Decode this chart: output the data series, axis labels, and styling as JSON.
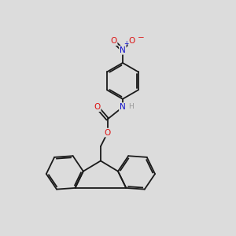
{
  "bg_color": "#dcdcdc",
  "bond_color": "#1a1a1a",
  "bond_width": 1.3,
  "atom_colors": {
    "O": "#dd1111",
    "N_nitro": "#1111cc",
    "N_amine": "#1111cc",
    "H": "#999999"
  },
  "canvas_xlim": [
    0,
    10
  ],
  "canvas_ylim": [
    0,
    10
  ]
}
